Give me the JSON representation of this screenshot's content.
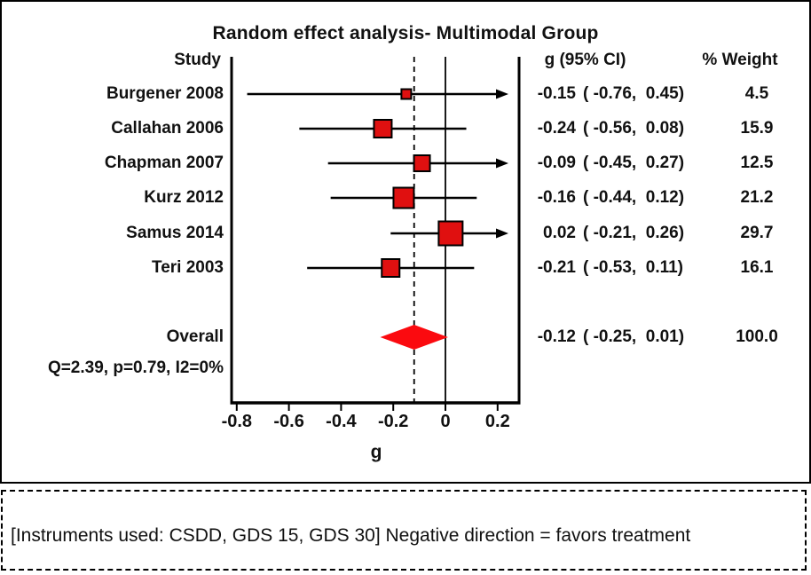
{
  "chart_data": {
    "type": "forest",
    "title": "Random effect analysis- Multimodal Group",
    "columns": [
      "Study",
      "g (95% CI)",
      "% Weight"
    ],
    "xlabel": "g",
    "x_ticks": [
      -0.8,
      -0.6,
      -0.4,
      -0.2,
      0,
      0.2
    ],
    "x_tick_labels": [
      "-0.8",
      "-0.6",
      "-0.4",
      "-0.2",
      "0",
      "0.2"
    ],
    "xlim": [
      -0.82,
      0.28
    ],
    "grid": false,
    "zero_reference_line": 0,
    "overall_dashed_line": -0.12,
    "studies": [
      {
        "name": "Burgener 2008",
        "g": -0.15,
        "g_text": "-0.15",
        "ci_low": -0.76,
        "ci_high": 0.45,
        "ci_text": "( -0.76,  0.45)",
        "weight": 4.5,
        "weight_text": "4.5",
        "arrow_right": true
      },
      {
        "name": "Callahan 2006",
        "g": -0.24,
        "g_text": "-0.24",
        "ci_low": -0.56,
        "ci_high": 0.08,
        "ci_text": "( -0.56,  0.08)",
        "weight": 15.9,
        "weight_text": "15.9",
        "arrow_right": false
      },
      {
        "name": "Chapman 2007",
        "g": -0.09,
        "g_text": "-0.09",
        "ci_low": -0.45,
        "ci_high": 0.27,
        "ci_text": "( -0.45,  0.27)",
        "weight": 12.5,
        "weight_text": "12.5",
        "arrow_right": true
      },
      {
        "name": "Kurz 2012",
        "g": -0.16,
        "g_text": "-0.16",
        "ci_low": -0.44,
        "ci_high": 0.12,
        "ci_text": "( -0.44,  0.12)",
        "weight": 21.2,
        "weight_text": "21.2",
        "arrow_right": false
      },
      {
        "name": "Samus 2014",
        "g": 0.02,
        "g_text": "0.02",
        "ci_low": -0.21,
        "ci_high": 0.26,
        "ci_text": "( -0.21,  0.26)",
        "weight": 29.7,
        "weight_text": "29.7",
        "arrow_right": true
      },
      {
        "name": "Teri 2003",
        "g": -0.21,
        "g_text": "-0.21",
        "ci_low": -0.53,
        "ci_high": 0.11,
        "ci_text": "( -0.53,  0.11)",
        "weight": 16.1,
        "weight_text": "16.1",
        "arrow_right": false
      }
    ],
    "overall": {
      "name": "Overall",
      "g": -0.12,
      "g_text": "-0.12",
      "ci_low": -0.25,
      "ci_high": 0.01,
      "ci_text": "( -0.25,  0.01)",
      "weight": 100.0,
      "weight_text": "100.0"
    },
    "heterogeneity": "Q=2.39, p=0.79, I2=0%"
  },
  "colors": {
    "square_fill": "#e01010",
    "square_border": "#000000",
    "diamond_fill": "#fb0a0f",
    "line": "#000000",
    "text": "#111111"
  },
  "note": {
    "text": "[Instruments used: CSDD, GDS 15, GDS 30] Negative direction = favors treatment"
  }
}
